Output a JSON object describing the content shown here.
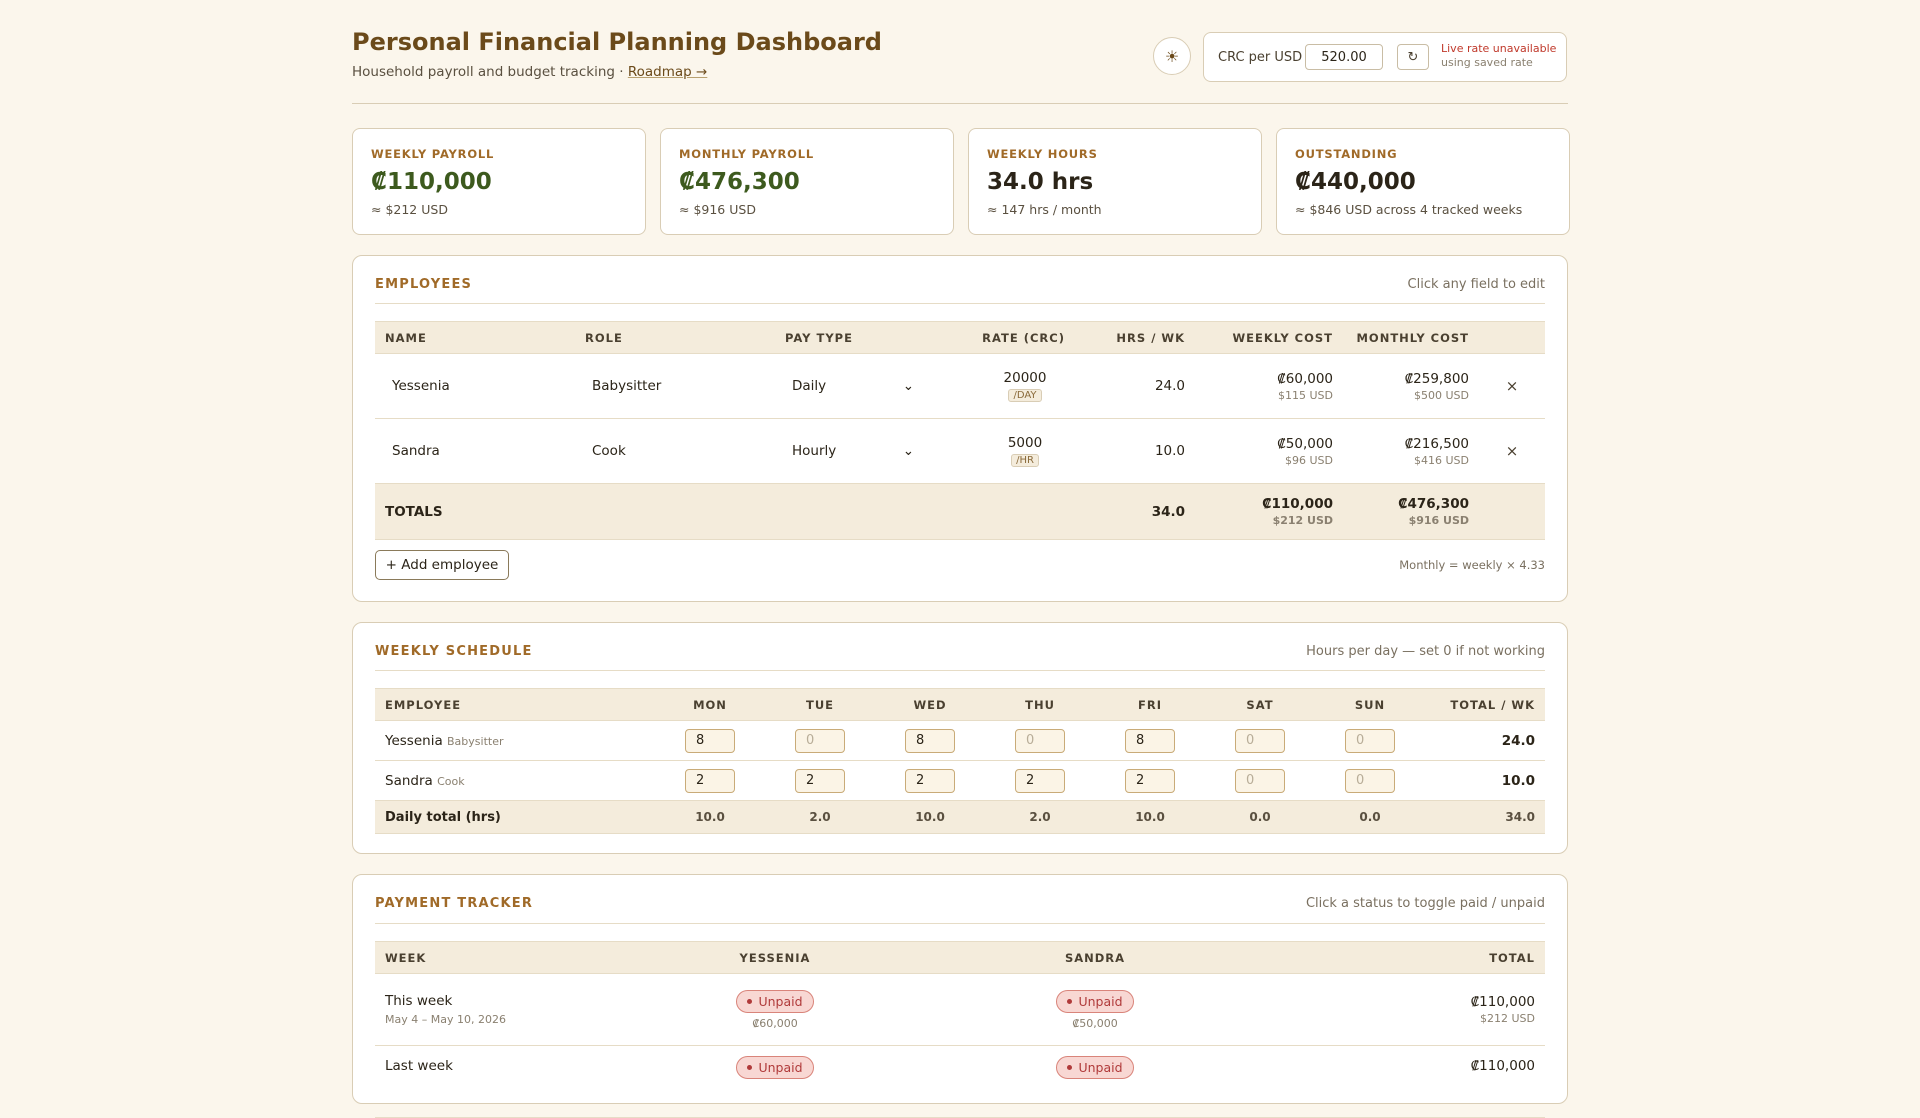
{
  "header": {
    "title": "Personal Financial Planning Dashboard",
    "subtitle": "Household payroll and budget tracking · ",
    "roadmap_link": "Roadmap →",
    "theme_icon": "☀",
    "rate_label": "CRC per USD",
    "rate_value": "520.00",
    "refresh_icon": "↻",
    "rate_warning": "Live rate unavailable",
    "rate_warning_sub": "using saved rate"
  },
  "stats": [
    {
      "label": "WEEKLY PAYROLL",
      "value": "₡110,000",
      "sub": "≈ $212 USD"
    },
    {
      "label": "MONTHLY PAYROLL",
      "value": "₡476,300",
      "sub": "≈ $916 USD"
    },
    {
      "label": "WEEKLY HOURS",
      "value": "34.0 hrs",
      "sub": "≈ 147 hrs / month"
    },
    {
      "label": "OUTSTANDING",
      "value": "₡440,000",
      "sub": "≈ $846 USD across 4 tracked weeks"
    }
  ],
  "employees": {
    "title": "EMPLOYEES",
    "hint": "Click any field to edit",
    "columns": [
      "NAME",
      "ROLE",
      "PAY TYPE",
      "RATE (CRC)",
      "HRS / WK",
      "WEEKLY COST",
      "MONTHLY COST"
    ],
    "rows": [
      {
        "name": "Yessenia",
        "role": "Babysitter",
        "pay_type": "Daily",
        "rate": "20000",
        "unit": "/DAY",
        "hrs": "24.0",
        "weekly": "₡60,000",
        "weekly_usd": "$115 USD",
        "monthly": "₡259,800",
        "monthly_usd": "$500 USD"
      },
      {
        "name": "Sandra",
        "role": "Cook",
        "pay_type": "Hourly",
        "rate": "5000",
        "unit": "/HR",
        "hrs": "10.0",
        "weekly": "₡50,000",
        "weekly_usd": "$96 USD",
        "monthly": "₡216,500",
        "monthly_usd": "$416 USD"
      }
    ],
    "totals": {
      "label": "TOTALS",
      "hrs": "34.0",
      "weekly": "₡110,000",
      "weekly_usd": "$212 USD",
      "monthly": "₡476,300",
      "monthly_usd": "$916 USD"
    },
    "add_label": "+ Add employee",
    "monthly_note": "Monthly = weekly × 4.33",
    "remove_icon": "×",
    "chevron_icon": "⌄"
  },
  "schedule": {
    "title": "WEEKLY SCHEDULE",
    "hint": "Hours per day — set 0 if not working",
    "columns": [
      "EMPLOYEE",
      "MON",
      "TUE",
      "WED",
      "THU",
      "FRI",
      "SAT",
      "SUN",
      "TOTAL / WK"
    ],
    "rows": [
      {
        "name": "Yessenia",
        "role": "Babysitter",
        "days": [
          "8",
          "0",
          "8",
          "0",
          "8",
          "0",
          "0"
        ],
        "total": "24.0"
      },
      {
        "name": "Sandra",
        "role": "Cook",
        "days": [
          "2",
          "2",
          "2",
          "2",
          "2",
          "0",
          "0"
        ],
        "total": "10.0"
      }
    ],
    "daily": {
      "label": "Daily total (hrs)",
      "days": [
        "10.0",
        "2.0",
        "10.0",
        "2.0",
        "10.0",
        "0.0",
        "0.0"
      ],
      "total": "34.0"
    }
  },
  "payments": {
    "title": "PAYMENT TRACKER",
    "hint": "Click a status to toggle paid / unpaid",
    "columns": [
      "WEEK",
      "YESSENIA",
      "SANDRA",
      "TOTAL"
    ],
    "rows": [
      {
        "week": "This week",
        "range": "May 4 – May 10, 2026",
        "yessenia_status": "Unpaid",
        "yessenia_amt": "₡60,000",
        "sandra_status": "Unpaid",
        "sandra_amt": "₡50,000",
        "total": "₡110,000",
        "total_usd": "$212 USD"
      },
      {
        "week": "Last week",
        "yessenia_status": "Unpaid",
        "sandra_status": "Unpaid",
        "total": "₡110,000"
      }
    ]
  }
}
